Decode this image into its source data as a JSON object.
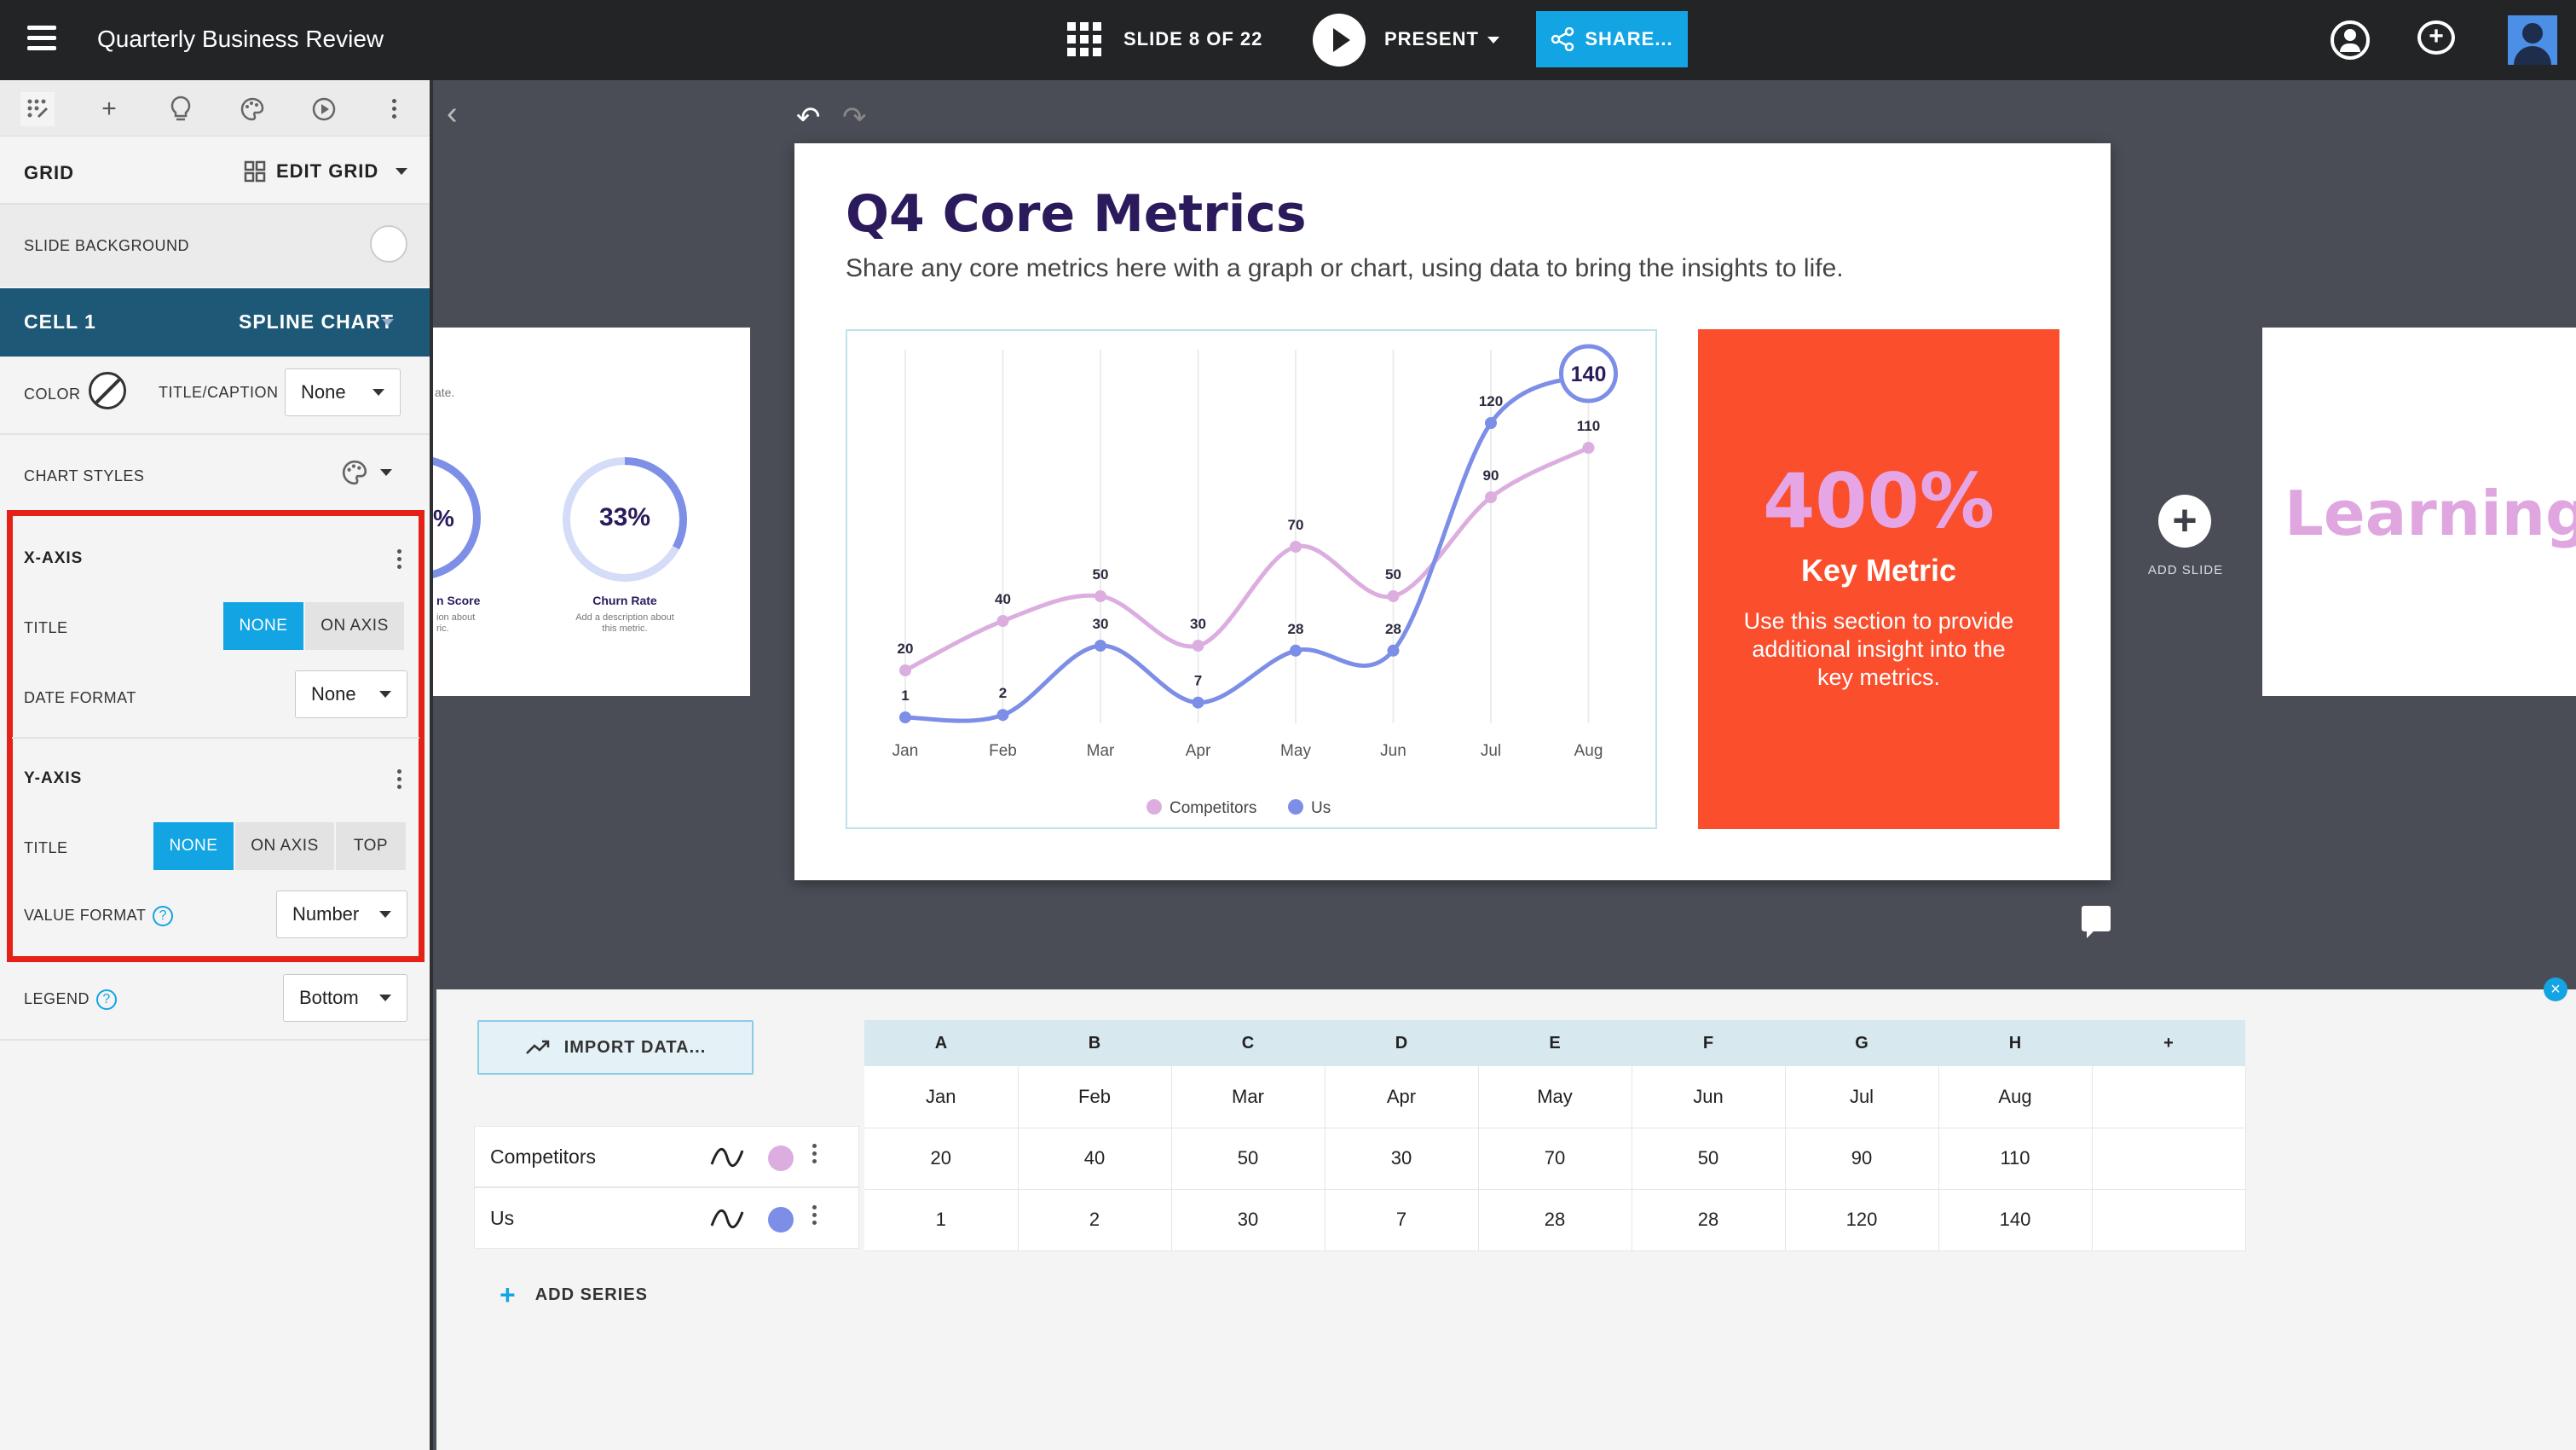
{
  "topbar": {
    "doc_title": "Quarterly Business Review",
    "slide_indicator": "SLIDE 8 OF 22",
    "present_label": "PRESENT",
    "share_label": "SHARE..."
  },
  "panel": {
    "grid_title": "GRID",
    "edit_grid_label": "EDIT GRID",
    "slide_background_label": "SLIDE BACKGROUND",
    "cell_label": "CELL 1",
    "chart_type": "SPLINE CHART",
    "color_label": "COLOR",
    "title_caption_label": "TITLE/CAPTION",
    "title_caption_value": "None",
    "chart_styles_label": "CHART STYLES",
    "x_axis": {
      "title": "X-AXIS",
      "title_label": "TITLE",
      "options": [
        "NONE",
        "ON AXIS"
      ],
      "selected": "NONE",
      "date_format_label": "DATE FORMAT",
      "date_format_value": "None"
    },
    "y_axis": {
      "title": "Y-AXIS",
      "title_label": "TITLE",
      "options": [
        "NONE",
        "ON AXIS",
        "TOP"
      ],
      "selected": "NONE",
      "value_format_label": "VALUE FORMAT",
      "value_format_value": "Number"
    },
    "legend_label": "LEGEND",
    "legend_value": "Bottom"
  },
  "slide": {
    "title": "Q4 Core Metrics",
    "subtitle": "Share any core metrics here with a graph or chart, using data to bring the insights to life.",
    "key_metric": {
      "value": "400%",
      "title": "Key Metric",
      "description": "Use this section to provide additional insight into the key metrics."
    }
  },
  "left_slide": {
    "snippet": "ate.",
    "metric1_value": "%",
    "metric1_label": "n Score",
    "metric1_desc_1": "ion about",
    "metric1_desc_2": "ric.",
    "metric2_value": "33%",
    "metric2_label": "Churn Rate",
    "metric2_desc_1": "Add a description about",
    "metric2_desc_2": "this metric."
  },
  "right_slide": {
    "title": "Learnings"
  },
  "add_slide_label": "ADD SLIDE",
  "chart_data": {
    "type": "line",
    "categories": [
      "Jan",
      "Feb",
      "Mar",
      "Apr",
      "May",
      "Jun",
      "Jul",
      "Aug"
    ],
    "series": [
      {
        "name": "Competitors",
        "values": [
          20,
          40,
          50,
          30,
          70,
          50,
          90,
          110
        ],
        "color": "#dcaee0"
      },
      {
        "name": "Us",
        "values": [
          1,
          2,
          30,
          7,
          28,
          28,
          120,
          140
        ],
        "color": "#7c8ee6"
      }
    ],
    "ylim": [
      0,
      140
    ],
    "legend": "bottom",
    "highlight": {
      "series": "Us",
      "label": "140"
    }
  },
  "editor": {
    "import_label": "IMPORT DATA...",
    "columns": [
      "A",
      "B",
      "C",
      "D",
      "E",
      "F",
      "G",
      "H",
      "+"
    ],
    "months": [
      "Jan",
      "Feb",
      "Mar",
      "Apr",
      "May",
      "Jun",
      "Jul",
      "Aug",
      ""
    ],
    "rows": [
      {
        "name": "Competitors",
        "color": "#dcaee0",
        "values": [
          "20",
          "40",
          "50",
          "30",
          "70",
          "50",
          "90",
          "110",
          ""
        ]
      },
      {
        "name": "Us",
        "color": "#7c8ee6",
        "values": [
          "1",
          "2",
          "30",
          "7",
          "28",
          "28",
          "120",
          "140",
          ""
        ]
      }
    ],
    "add_series_label": "ADD SERIES"
  }
}
